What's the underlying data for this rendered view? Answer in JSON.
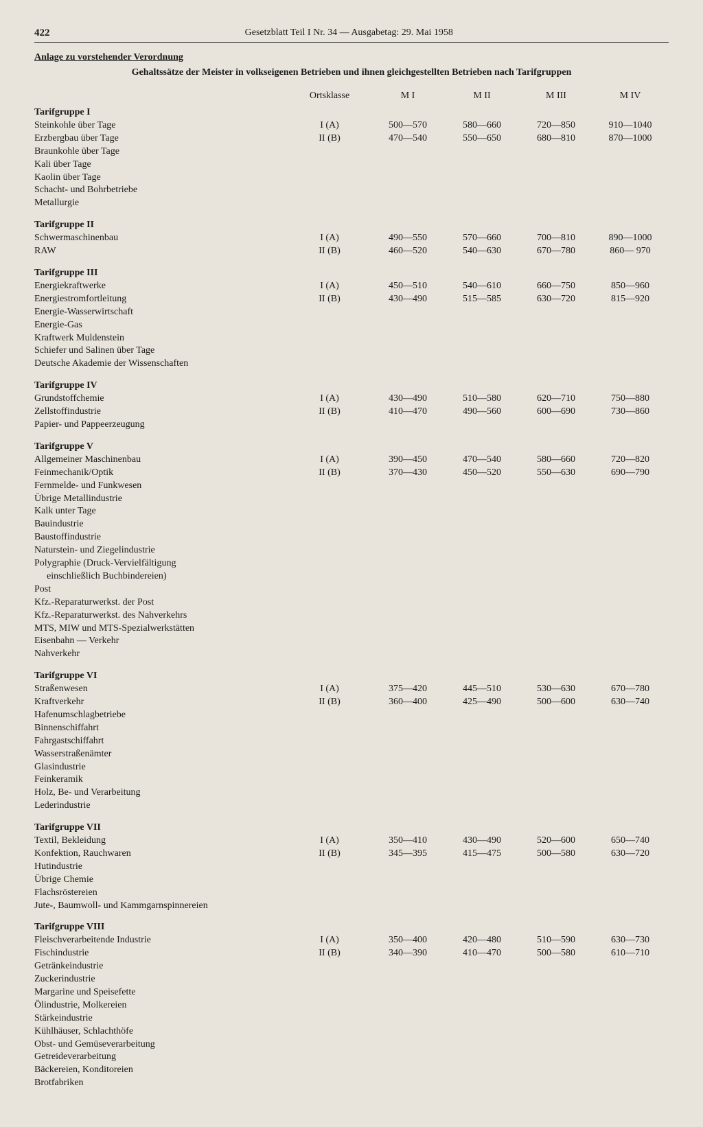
{
  "page_number": "422",
  "header_title": "Gesetzblatt Teil I Nr. 34 — Ausgabetag: 29. Mai 1958",
  "anlage": "Anlage zu vorstehender Verordnung",
  "subtitle": "Gehaltssätze der Meister in volkseigenen Betrieben und ihnen gleichgestellten Betrieben nach Tarifgruppen",
  "column_headers": {
    "ortsklasse": "Ortsklasse",
    "m1": "M I",
    "m2": "M II",
    "m3": "M III",
    "m4": "M IV"
  },
  "ortsklasse_rows": [
    "I (A)",
    "II (B)"
  ],
  "groups": [
    {
      "title": "Tarifgruppe I",
      "items": [
        "Steinkohle über Tage",
        "Erzbergbau über Tage",
        "Braunkohle über Tage",
        "Kali über Tage",
        "Kaolin über Tage",
        "Schacht- und Bohrbetriebe",
        "Metallurgie"
      ],
      "rows": [
        {
          "m1": "500—570",
          "m2": "580—660",
          "m3": "720—850",
          "m4": "910—1040"
        },
        {
          "m1": "470—540",
          "m2": "550—650",
          "m3": "680—810",
          "m4": "870—1000"
        }
      ]
    },
    {
      "title": "Tarifgruppe II",
      "items": [
        "Schwermaschinenbau",
        "RAW"
      ],
      "rows": [
        {
          "m1": "490—550",
          "m2": "570—660",
          "m3": "700—810",
          "m4": "890—1000"
        },
        {
          "m1": "460—520",
          "m2": "540—630",
          "m3": "670—780",
          "m4": "860— 970"
        }
      ]
    },
    {
      "title": "Tarifgruppe III",
      "items": [
        "Energiekraftwerke",
        "Energiestromfortleitung",
        "Energie-Wasserwirtschaft",
        "Energie-Gas",
        "Kraftwerk Muldenstein",
        "Schiefer und Salinen über Tage",
        "Deutsche Akademie der Wissenschaften"
      ],
      "rows": [
        {
          "m1": "450—510",
          "m2": "540—610",
          "m3": "660—750",
          "m4": "850—960"
        },
        {
          "m1": "430—490",
          "m2": "515—585",
          "m3": "630—720",
          "m4": "815—920"
        }
      ]
    },
    {
      "title": "Tarifgruppe IV",
      "items": [
        "Grundstoffchemie",
        "Zellstoffindustrie",
        "Papier- und Pappeerzeugung"
      ],
      "rows": [
        {
          "m1": "430—490",
          "m2": "510—580",
          "m3": "620—710",
          "m4": "750—880"
        },
        {
          "m1": "410—470",
          "m2": "490—560",
          "m3": "600—690",
          "m4": "730—860"
        }
      ]
    },
    {
      "title": "Tarifgruppe V",
      "items": [
        "Allgemeiner Maschinenbau",
        "Feinmechanik/Optik",
        "Fernmelde- und Funkwesen",
        "Übrige Metallindustrie",
        "Kalk unter Tage",
        "Bauindustrie",
        "Baustoffindustrie",
        "Naturstein- und Ziegelindustrie",
        "Polygraphie (Druck-Vervielfältigung",
        "   einschließlich Buchbindereien)",
        "Post",
        "Kfz.-Reparaturwerkst. der Post",
        "Kfz.-Reparaturwerkst. des Nahverkehrs",
        "MTS, MIW und MTS-Spezialwerkstätten",
        "Eisenbahn — Verkehr",
        "Nahverkehr"
      ],
      "rows": [
        {
          "m1": "390—450",
          "m2": "470—540",
          "m3": "580—660",
          "m4": "720—820"
        },
        {
          "m1": "370—430",
          "m2": "450—520",
          "m3": "550—630",
          "m4": "690—790"
        }
      ]
    },
    {
      "title": "Tarifgruppe VI",
      "items": [
        "Straßenwesen",
        "Kraftverkehr",
        "Hafenumschlagbetriebe",
        "Binnenschiffahrt",
        "Fahrgastschiffahrt",
        "Wasserstraßenämter",
        "Glasindustrie",
        "Feinkeramik",
        "Holz, Be- und Verarbeitung",
        "Lederindustrie"
      ],
      "rows": [
        {
          "m1": "375—420",
          "m2": "445—510",
          "m3": "530—630",
          "m4": "670—780"
        },
        {
          "m1": "360—400",
          "m2": "425—490",
          "m3": "500—600",
          "m4": "630—740"
        }
      ]
    },
    {
      "title": "Tarifgruppe VII",
      "items": [
        "Textil, Bekleidung",
        "Konfektion, Rauchwaren",
        "Hutindustrie",
        "Übrige Chemie",
        "Flachsröstereien",
        "Jute-, Baumwoll- und Kammgarnspinnereien"
      ],
      "rows": [
        {
          "m1": "350—410",
          "m2": "430—490",
          "m3": "520—600",
          "m4": "650—740"
        },
        {
          "m1": "345—395",
          "m2": "415—475",
          "m3": "500—580",
          "m4": "630—720"
        }
      ]
    },
    {
      "title": "Tarifgruppe VIII",
      "items": [
        "Fleischverarbeitende Industrie",
        "Fischindustrie",
        "Getränkeindustrie",
        "Zuckerindustrie",
        "Margarine und Speisefette",
        "Ölindustrie, Molkereien",
        "Stärkeindustrie",
        "Kühlhäuser, Schlachthöfe",
        "Obst- und Gemüseverarbeitung",
        "Getreideverarbeitung",
        "Bäckereien, Konditoreien",
        "Brotfabriken"
      ],
      "rows": [
        {
          "m1": "350—400",
          "m2": "420—480",
          "m3": "510—590",
          "m4": "630—730"
        },
        {
          "m1": "340—390",
          "m2": "410—470",
          "m3": "500—580",
          "m4": "610—710"
        }
      ]
    }
  ]
}
